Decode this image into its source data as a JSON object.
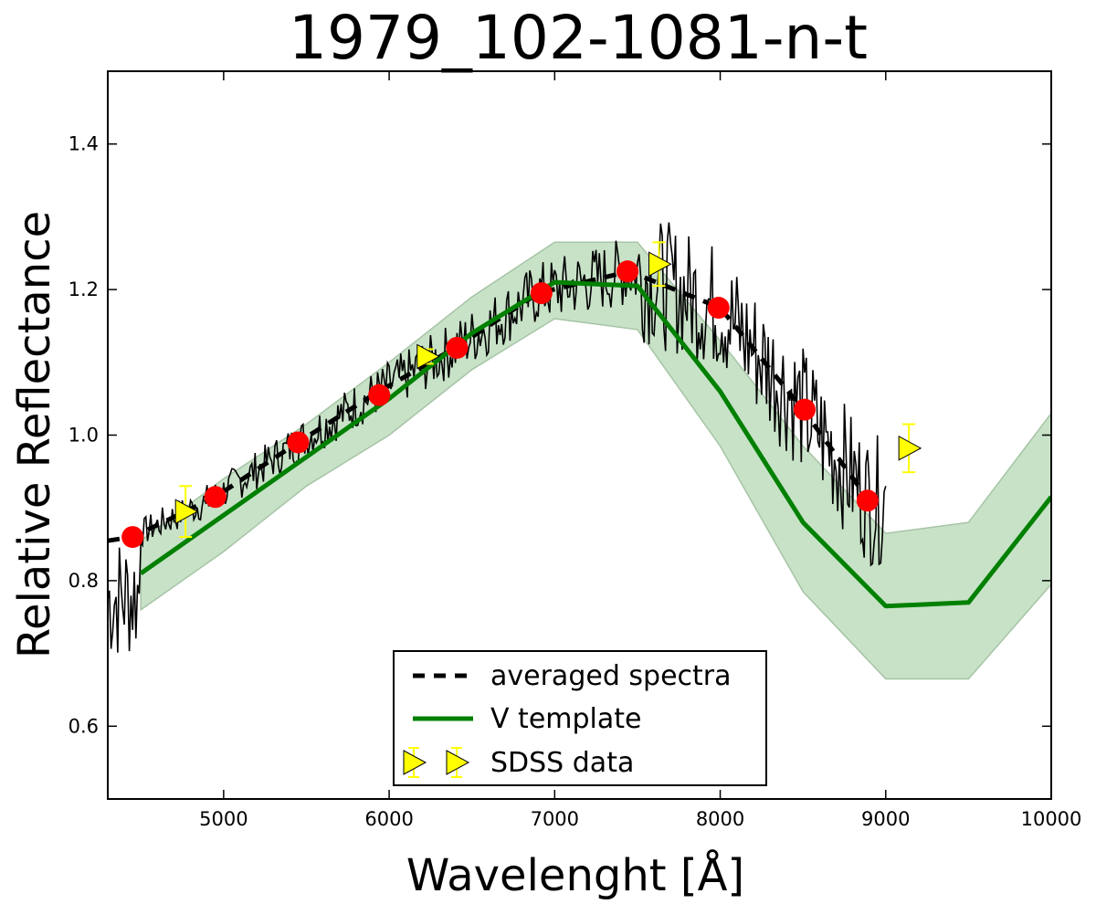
{
  "chart_data": {
    "type": "line",
    "title": "1979_102-1081-n-t",
    "xlabel": "Wavelenght [Å]",
    "ylabel": "Relative Reflectance",
    "xlim": [
      4300,
      10000
    ],
    "ylim": [
      0.5,
      1.5
    ],
    "x_ticks": [
      5000,
      6000,
      7000,
      8000,
      9000,
      10000
    ],
    "y_ticks": [
      0.6,
      0.8,
      1.0,
      1.2,
      1.4
    ],
    "x_tick_labels": [
      "5000",
      "6000",
      "7000",
      "8000",
      "9000",
      "10000"
    ],
    "y_tick_labels": [
      "0.6",
      "0.8",
      "1.0",
      "1.2",
      "1.4"
    ],
    "colors": {
      "raw_spectrum": "#000000",
      "averaged": "#000000",
      "template": "#008000",
      "band_fill": "#c8e2c8",
      "band_edge": "#a6c4a6",
      "avg_points": "#ff0000",
      "sdss_fill": "#ffff00",
      "sdss_errbar": "#ffff00"
    },
    "legend": {
      "position": "bottom-center",
      "entries": [
        "averaged spectra",
        "V template",
        "SDSS data"
      ]
    },
    "series": [
      {
        "name": "averaged spectra",
        "style": "dashed",
        "x": [
          4300,
          4450,
          4950,
          5450,
          5900,
          6400,
          6900,
          7450,
          8000,
          8500,
          8900
        ],
        "y": [
          0.855,
          0.86,
          0.915,
          0.99,
          1.055,
          1.12,
          1.195,
          1.225,
          1.175,
          1.035,
          0.91
        ]
      },
      {
        "name": "averaged points",
        "style": "markers",
        "x": [
          4450,
          4950,
          5450,
          5940,
          6410,
          6920,
          7440,
          7990,
          8510,
          8890
        ],
        "y": [
          0.86,
          0.915,
          0.99,
          1.055,
          1.12,
          1.195,
          1.225,
          1.175,
          1.035,
          0.91
        ]
      },
      {
        "name": "V template",
        "style": "solid",
        "x": [
          4500,
          5000,
          5500,
          6000,
          6500,
          7000,
          7500,
          8000,
          8500,
          9000,
          9500,
          10000
        ],
        "y": [
          0.81,
          0.89,
          0.97,
          1.05,
          1.14,
          1.21,
          1.205,
          1.06,
          0.88,
          0.765,
          0.77,
          0.915
        ]
      },
      {
        "name": "V template band upper",
        "style": "band-upper",
        "x": [
          4500,
          5000,
          5500,
          6000,
          6500,
          7000,
          7500,
          8000,
          8500,
          9000,
          9500,
          10000
        ],
        "y": [
          0.855,
          0.94,
          1.015,
          1.1,
          1.19,
          1.265,
          1.265,
          1.13,
          0.985,
          0.865,
          0.88,
          1.03
        ]
      },
      {
        "name": "V template band lower",
        "style": "band-lower",
        "x": [
          4500,
          5000,
          5500,
          6000,
          6500,
          7000,
          7500,
          8000,
          8500,
          9000,
          9500,
          10000
        ],
        "y": [
          0.76,
          0.84,
          0.93,
          1.0,
          1.09,
          1.16,
          1.145,
          0.985,
          0.785,
          0.665,
          0.665,
          0.795
        ]
      },
      {
        "name": "SDSS data",
        "style": "triangles",
        "x": [
          4770,
          6230,
          7630,
          9140
        ],
        "y": [
          0.895,
          1.108,
          1.235,
          0.982
        ],
        "err": [
          0.035,
          0.01,
          0.03,
          0.033
        ]
      }
    ],
    "raw_spectrum": {
      "name": "individual spectrum",
      "x_start": 4300,
      "x_step": 10,
      "x_end": 9000,
      "noise_seed": 7
    }
  }
}
